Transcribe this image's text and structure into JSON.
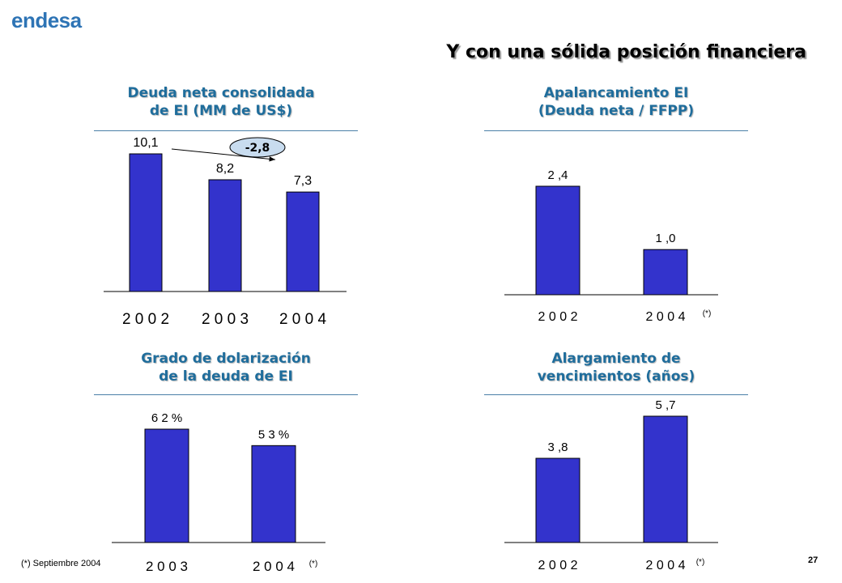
{
  "brand": {
    "logo_text": "endesa",
    "logo_color": "#2e74b5"
  },
  "slide": {
    "title": "Y con una sólida posición financiera",
    "footnote": "(*) Septiembre 2004",
    "page_number": "27"
  },
  "colors": {
    "bar_fill": "#3333cc",
    "panel_title": "#1f6d9c",
    "rule": "#4a7fa7"
  },
  "chart_data": [
    {
      "type": "bar",
      "title": [
        "Deuda neta consolidada",
        "de EI (MM de US$)"
      ],
      "categories": [
        "2002",
        "2003",
        "2004"
      ],
      "category_labels": [
        "2 0 0 2",
        "2 0 0 3",
        "2 0 0 4"
      ],
      "values": [
        10.1,
        8.2,
        7.3
      ],
      "data_labels": [
        "10,1",
        "8,2",
        "7,3"
      ],
      "annotation": {
        "text": "-2,8",
        "type": "decrease-arrow",
        "from_category": "2002",
        "to_category": "2004"
      },
      "ylim": [
        0,
        10.1
      ]
    },
    {
      "type": "bar",
      "title": [
        "Apalancamiento EI",
        "(Deuda neta / FFPP)"
      ],
      "categories": [
        "2002",
        "2004"
      ],
      "category_labels": [
        "2 0 0 2",
        "2 0 0 4"
      ],
      "values": [
        2.4,
        1.0
      ],
      "data_labels": [
        "2 ,4",
        "1 ,0"
      ],
      "note": "(*)",
      "ylim": [
        0,
        2.4
      ]
    },
    {
      "type": "bar",
      "title": [
        "Grado de dolarización",
        "de la deuda de EI"
      ],
      "categories": [
        "2003",
        "2004"
      ],
      "category_labels": [
        "2 0 0 3",
        "2 0 0 4"
      ],
      "values": [
        62,
        53
      ],
      "data_labels": [
        "6 2 %",
        "5 3 %"
      ],
      "note": "(*)",
      "ylim": [
        0,
        62
      ]
    },
    {
      "type": "bar",
      "title": [
        "Alargamiento de",
        "vencimientos (años)"
      ],
      "categories": [
        "2002",
        "2004"
      ],
      "category_labels": [
        "2 0 0 2",
        "2 0 0 4"
      ],
      "values": [
        3.8,
        5.7
      ],
      "data_labels": [
        "3 ,8",
        "5 ,7"
      ],
      "note": "(*)",
      "ylim": [
        0,
        5.7
      ]
    }
  ]
}
